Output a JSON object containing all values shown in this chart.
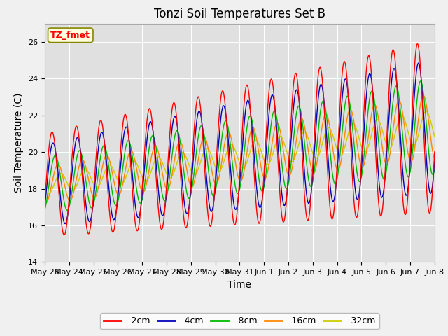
{
  "title": "Tonzi Soil Temperatures Set B",
  "xlabel": "Time",
  "ylabel": "Soil Temperature (C)",
  "ylim": [
    14,
    27
  ],
  "yticks": [
    14,
    16,
    18,
    20,
    22,
    24,
    26
  ],
  "legend_label": "TZ_fmet",
  "series_labels": [
    "-2cm",
    "-4cm",
    "-8cm",
    "-16cm",
    "-32cm"
  ],
  "series_colors": [
    "#ff0000",
    "#0000bb",
    "#00bb00",
    "#ff8800",
    "#cccc00"
  ],
  "fig_facecolor": "#f0f0f0",
  "ax_facecolor": "#e0e0e0",
  "title_fontsize": 12,
  "axis_fontsize": 10,
  "tick_fontsize": 8,
  "n_days": 16,
  "base_temp": 18.2,
  "trend_rate": 0.2
}
